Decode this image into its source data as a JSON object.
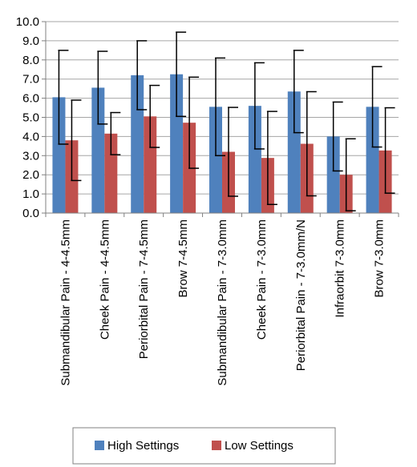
{
  "chart_data": {
    "type": "bar",
    "title": "",
    "xlabel": "",
    "ylabel": "",
    "ylim": [
      0,
      10
    ],
    "yticks": [
      "0.0",
      "1.0",
      "2.0",
      "3.0",
      "4.0",
      "5.0",
      "6.0",
      "7.0",
      "8.0",
      "9.0",
      "10.0"
    ],
    "grid": "horizontal",
    "legend_position": "bottom",
    "categories": [
      "Submandibular Pain - 4-4.5mm",
      "Cheek Pain - 4-4.5mm",
      "Periorbital Pain - 7-4.5mm",
      "Brow 7-4.5mm",
      "Submandibular Pain - 7-3.0mm",
      "Cheek Pain - 7-3.0mm",
      "Periorbital Pain - 7-3.0mm/N",
      "Infraorbit 7-3.0mm",
      "Brow 7-3.0mm"
    ],
    "series": [
      {
        "name": "High Settings",
        "color": "#4f81bd",
        "values": [
          6.05,
          6.55,
          7.2,
          7.25,
          5.55,
          5.6,
          6.35,
          4.0,
          5.55
        ],
        "error": [
          2.45,
          1.9,
          1.8,
          2.2,
          2.55,
          2.25,
          2.15,
          1.8,
          2.1
        ]
      },
      {
        "name": "Low Settings",
        "color": "#c0504d",
        "values": [
          3.8,
          4.15,
          5.05,
          4.72,
          3.2,
          2.88,
          3.62,
          2.0,
          3.27
        ],
        "error": [
          2.1,
          1.1,
          1.62,
          2.38,
          2.32,
          2.43,
          2.72,
          1.88,
          2.23
        ]
      }
    ]
  }
}
